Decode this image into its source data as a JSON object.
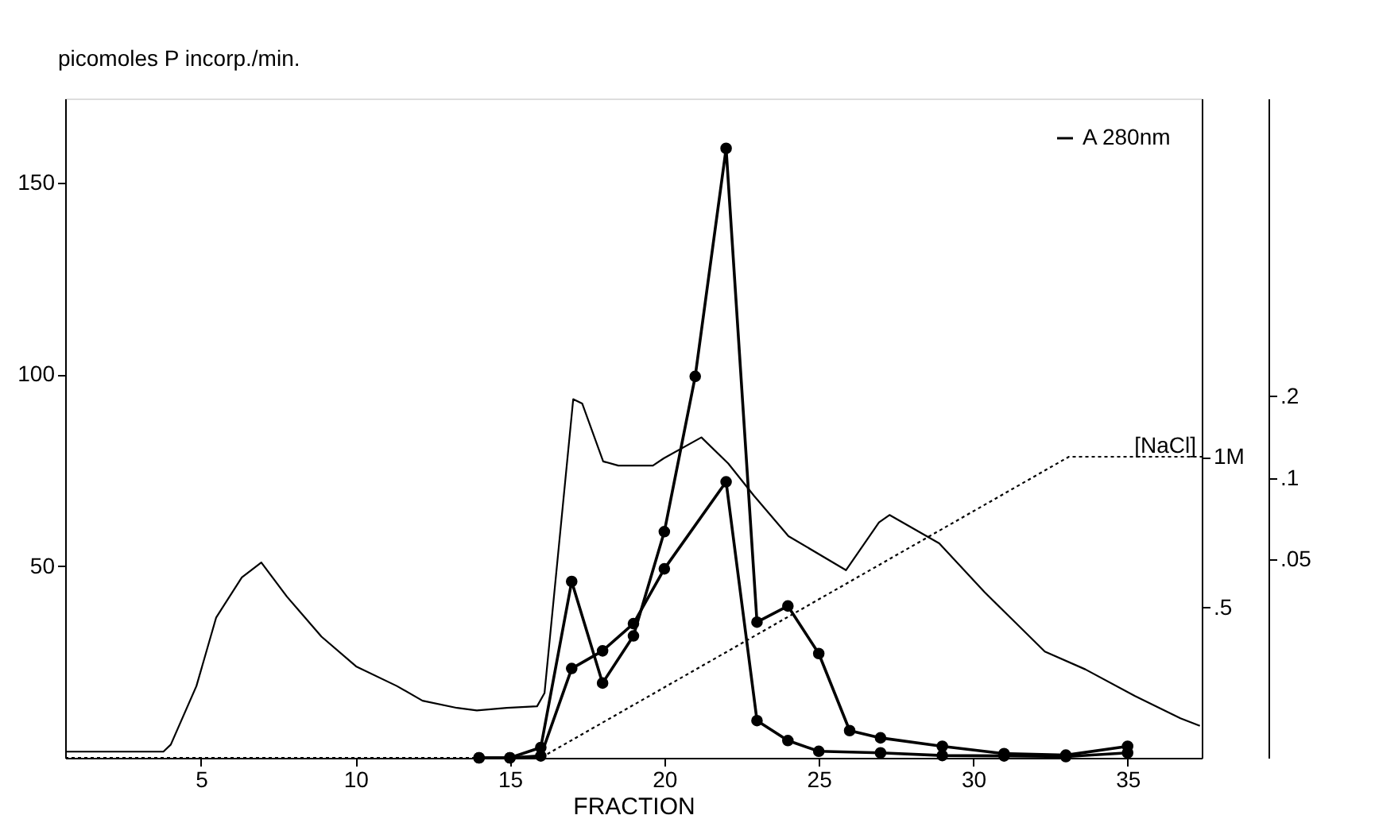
{
  "chart_data": {
    "type": "line",
    "xlabel": "FRACTION",
    "ylabel": "picomoles P incorp./min.",
    "y2label": "[NaCl]",
    "xlim": [
      0.6,
      37.4
    ],
    "xticks": [
      5,
      10,
      15,
      20,
      25,
      30,
      35
    ],
    "ylim": [
      0,
      172
    ],
    "yticks": [
      50,
      100,
      150
    ],
    "y2lim": [
      0,
      2.19
    ],
    "y2ticks": [
      {
        "value": 0.5,
        "label": ".5"
      },
      {
        "value": 1,
        "label": "1M"
      }
    ],
    "y3lim": [
      0.0093,
      2.5
    ],
    "y3ticks": [
      {
        "value": 0.05,
        "label": ".05"
      },
      {
        "value": 0.1,
        "label": ".1"
      },
      {
        "value": 0.2,
        "label": ".2"
      }
    ],
    "log": "y3",
    "grid": false,
    "legend": "top right",
    "series": [
      {
        "color": "#000000",
        "marker": "circle",
        "line_style": "solid",
        "x": [
          14,
          15,
          16,
          17,
          18,
          19,
          20,
          21,
          22,
          23,
          24,
          25,
          26,
          27,
          29,
          31,
          33,
          35
        ],
        "values": [
          0,
          0,
          2.7,
          46,
          19.5,
          31.8,
          59,
          99.5,
          159,
          35.4,
          39.6,
          27.2,
          7.1,
          5.2,
          3,
          1.1,
          0.7,
          3
        ]
      },
      {
        "color": "#000000",
        "marker": "circle",
        "line_style": "solid",
        "x": [
          14,
          15,
          16,
          17,
          18,
          19,
          20,
          22,
          23,
          24,
          25,
          27,
          29,
          31,
          33,
          35
        ],
        "values": [
          0,
          0,
          0.5,
          23.3,
          27.9,
          35,
          49.3,
          72,
          9.7,
          4.5,
          1.7,
          1.3,
          0.6,
          0.5,
          0.3,
          1.3
        ]
      },
      {
        "axis": "y2",
        "color": "#000000",
        "marker": "none",
        "line_style": "dotted",
        "x": [
          0.6,
          16,
          33.1,
          37.4
        ],
        "values": [
          0,
          0,
          1,
          1
        ]
      },
      {
        "name": "A 280nm",
        "axis": "y3",
        "color": "#000000",
        "marker": "none",
        "line_style": "solid",
        "x": [
          0.61,
          3.78,
          4.02,
          4.85,
          5.49,
          6.32,
          6.95,
          7.78,
          8.9,
          10.02,
          11.34,
          12.17,
          13.29,
          13.93,
          14.9,
          15.88,
          16.12,
          17.05,
          17.34,
          18.02,
          18.51,
          19.63,
          19.98,
          21.2,
          22.07,
          22.9,
          24.02,
          25.88,
          26.95,
          27.29,
          28.9,
          30.37,
          32.32,
          33.63,
          35.24,
          36.71,
          37.34
        ],
        "values": [
          0.0098,
          0.0098,
          0.0104,
          0.0171,
          0.0306,
          0.043,
          0.0488,
          0.0365,
          0.026,
          0.0202,
          0.0171,
          0.0151,
          0.0142,
          0.0139,
          0.0142,
          0.0144,
          0.0161,
          0.195,
          0.188,
          0.115,
          0.111,
          0.111,
          0.118,
          0.141,
          0.113,
          0.086,
          0.061,
          0.0457,
          0.0685,
          0.073,
          0.0574,
          0.0379,
          0.0229,
          0.0197,
          0.0157,
          0.013,
          0.0122
        ]
      }
    ]
  }
}
